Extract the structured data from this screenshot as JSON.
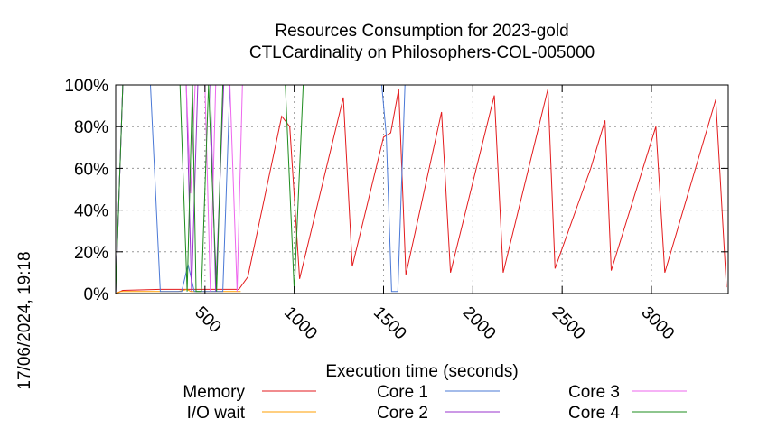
{
  "chart_data": {
    "type": "line",
    "title": "Resources Consumption for 2023-gold",
    "subtitle": "CTLCardinality on Philosophers-COL-005000",
    "xlabel": "Execution time (seconds)",
    "ylabel": "",
    "timestamp": "17/06/2024, 19:18",
    "xlim": [
      0,
      3430
    ],
    "ylim": [
      0,
      100
    ],
    "xticks": [
      500,
      1000,
      1500,
      2000,
      2500,
      3000
    ],
    "xtick_labels": [
      "500",
      "1000",
      "1500",
      "2000",
      "2500",
      "3000"
    ],
    "yticks": [
      0,
      20,
      40,
      60,
      80,
      100
    ],
    "ytick_labels": [
      "0%",
      "20%",
      "40%",
      "60%",
      "80%",
      "100%"
    ],
    "grid": true,
    "legend_placement": "bottom",
    "series": [
      {
        "name": "Memory",
        "color": "#e31a1c",
        "points": [
          [
            0,
            0
          ],
          [
            40,
            1.5
          ],
          [
            250,
            2
          ],
          [
            600,
            2
          ],
          [
            690,
            2
          ],
          [
            740,
            8
          ],
          [
            930,
            85
          ],
          [
            975,
            80
          ],
          [
            1030,
            7
          ],
          [
            1275,
            94
          ],
          [
            1325,
            13
          ],
          [
            1500,
            75
          ],
          [
            1540,
            77
          ],
          [
            1585,
            98
          ],
          [
            1625,
            9
          ],
          [
            1825,
            87
          ],
          [
            1875,
            10
          ],
          [
            2120,
            95
          ],
          [
            2170,
            10
          ],
          [
            2420,
            98
          ],
          [
            2460,
            12
          ],
          [
            2660,
            60
          ],
          [
            2740,
            83
          ],
          [
            2775,
            11
          ],
          [
            3025,
            80
          ],
          [
            3075,
            10
          ],
          [
            3360,
            93
          ],
          [
            3420,
            3
          ]
        ]
      },
      {
        "name": "I/O wait",
        "color": "#ff9f00",
        "points": [
          [
            0,
            0
          ],
          [
            30,
            1
          ],
          [
            200,
            1
          ],
          [
            350,
            1
          ],
          [
            400,
            2
          ],
          [
            420,
            1
          ],
          [
            480,
            1
          ],
          [
            700,
            1
          ]
        ]
      },
      {
        "name": "Core 1",
        "color": "#4a78d6",
        "points": [
          [
            0,
            0
          ],
          [
            40,
            100
          ],
          [
            195,
            100
          ],
          [
            250,
            1
          ],
          [
            370,
            1
          ],
          [
            405,
            14
          ],
          [
            440,
            1
          ],
          [
            600,
            1
          ],
          [
            640,
            100
          ],
          [
            1490,
            100
          ],
          [
            1515,
            76
          ],
          [
            1545,
            1
          ],
          [
            1580,
            1
          ],
          [
            1620,
            100
          ],
          [
            3430,
            100
          ]
        ]
      },
      {
        "name": "Core 2",
        "color": "#9933cc",
        "points": [
          [
            0,
            0
          ],
          [
            40,
            100
          ],
          [
            395,
            100
          ],
          [
            425,
            1
          ],
          [
            460,
            100
          ],
          [
            530,
            100
          ],
          [
            560,
            1
          ],
          [
            605,
            100
          ],
          [
            1005,
            100
          ],
          [
            1035,
            100
          ],
          [
            3430,
            100
          ]
        ]
      },
      {
        "name": "Core 3",
        "color": "#ee66ee",
        "points": [
          [
            0,
            0
          ],
          [
            40,
            100
          ],
          [
            395,
            100
          ],
          [
            420,
            48
          ],
          [
            445,
            100
          ],
          [
            500,
            100
          ],
          [
            530,
            1
          ],
          [
            560,
            100
          ],
          [
            640,
            100
          ],
          [
            680,
            1
          ],
          [
            710,
            100
          ],
          [
            945,
            100
          ],
          [
            1005,
            100
          ],
          [
            3430,
            100
          ]
        ]
      },
      {
        "name": "Core 4",
        "color": "#1e8c1e",
        "points": [
          [
            0,
            0
          ],
          [
            40,
            100
          ],
          [
            360,
            100
          ],
          [
            400,
            1
          ],
          [
            430,
            100
          ],
          [
            450,
            1
          ],
          [
            480,
            1
          ],
          [
            520,
            100
          ],
          [
            565,
            1
          ],
          [
            600,
            100
          ],
          [
            950,
            100
          ],
          [
            1000,
            1
          ],
          [
            1050,
            100
          ],
          [
            3430,
            100
          ]
        ]
      }
    ]
  }
}
